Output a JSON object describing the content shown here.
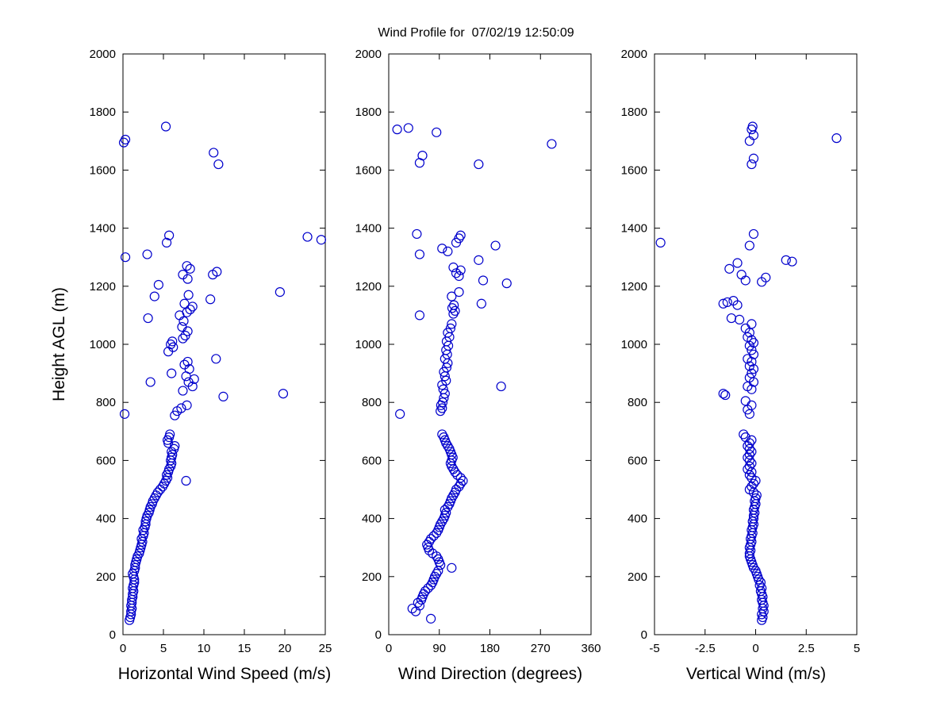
{
  "title": "Wind Profile for  07/02/19 12:50:09",
  "marker_color": "#0000cc",
  "axis_color": "#000000",
  "chart_data": [
    {
      "type": "scatter",
      "xlabel": "Horizontal Wind Speed (m/s)",
      "ylabel": "Height AGL (m)",
      "xlim": [
        0,
        25
      ],
      "ylim": [
        0,
        2000
      ],
      "xticks": [
        0,
        5,
        10,
        15,
        20,
        25
      ],
      "yticks": [
        0,
        200,
        400,
        600,
        800,
        1000,
        1200,
        1400,
        1600,
        1800,
        2000
      ],
      "legend": "none",
      "grid": false,
      "points": [
        [
          0.8,
          50
        ],
        [
          0.9,
          60
        ],
        [
          1.0,
          70
        ],
        [
          1.0,
          80
        ],
        [
          1.1,
          90
        ],
        [
          1.0,
          100
        ],
        [
          1.1,
          110
        ],
        [
          1.1,
          120
        ],
        [
          1.2,
          130
        ],
        [
          1.2,
          140
        ],
        [
          1.3,
          150
        ],
        [
          1.2,
          160
        ],
        [
          1.3,
          170
        ],
        [
          1.4,
          180
        ],
        [
          1.4,
          190
        ],
        [
          1.3,
          200
        ],
        [
          1.2,
          210
        ],
        [
          1.4,
          220
        ],
        [
          1.5,
          230
        ],
        [
          1.5,
          240
        ],
        [
          1.6,
          250
        ],
        [
          1.7,
          260
        ],
        [
          1.8,
          270
        ],
        [
          2.0,
          280
        ],
        [
          2.1,
          290
        ],
        [
          2.2,
          300
        ],
        [
          2.3,
          310
        ],
        [
          2.4,
          320
        ],
        [
          2.3,
          330
        ],
        [
          2.5,
          340
        ],
        [
          2.6,
          350
        ],
        [
          2.5,
          360
        ],
        [
          2.7,
          370
        ],
        [
          2.8,
          380
        ],
        [
          2.8,
          390
        ],
        [
          2.9,
          400
        ],
        [
          3.0,
          410
        ],
        [
          3.2,
          420
        ],
        [
          3.3,
          430
        ],
        [
          3.4,
          440
        ],
        [
          3.6,
          450
        ],
        [
          3.7,
          460
        ],
        [
          3.9,
          470
        ],
        [
          4.1,
          480
        ],
        [
          4.3,
          490
        ],
        [
          4.6,
          500
        ],
        [
          4.9,
          510
        ],
        [
          5.1,
          520
        ],
        [
          5.3,
          530
        ],
        [
          7.8,
          530
        ],
        [
          5.5,
          540
        ],
        [
          5.4,
          550
        ],
        [
          5.6,
          560
        ],
        [
          5.7,
          570
        ],
        [
          5.9,
          580
        ],
        [
          6.0,
          590
        ],
        [
          5.9,
          600
        ],
        [
          6.0,
          610
        ],
        [
          6.1,
          620
        ],
        [
          6.0,
          630
        ],
        [
          6.3,
          640
        ],
        [
          6.4,
          650
        ],
        [
          5.6,
          660
        ],
        [
          5.5,
          670
        ],
        [
          5.7,
          680
        ],
        [
          5.8,
          690
        ],
        [
          0.2,
          760
        ],
        [
          6.4,
          755
        ],
        [
          6.7,
          770
        ],
        [
          7.2,
          780
        ],
        [
          7.9,
          790
        ],
        [
          12.4,
          820
        ],
        [
          19.8,
          830
        ],
        [
          7.4,
          840
        ],
        [
          8.6,
          855
        ],
        [
          3.4,
          870
        ],
        [
          8.1,
          870
        ],
        [
          8.8,
          880
        ],
        [
          7.8,
          890
        ],
        [
          6.0,
          900
        ],
        [
          8.2,
          915
        ],
        [
          7.6,
          930
        ],
        [
          8.0,
          940
        ],
        [
          11.5,
          950
        ],
        [
          5.6,
          975
        ],
        [
          6.2,
          990
        ],
        [
          5.9,
          1000
        ],
        [
          6.1,
          1010
        ],
        [
          7.4,
          1020
        ],
        [
          7.7,
          1030
        ],
        [
          8.0,
          1045
        ],
        [
          7.3,
          1060
        ],
        [
          7.5,
          1080
        ],
        [
          3.1,
          1090
        ],
        [
          7.0,
          1100
        ],
        [
          7.9,
          1110
        ],
        [
          8.3,
          1120
        ],
        [
          8.6,
          1130
        ],
        [
          7.6,
          1140
        ],
        [
          10.8,
          1155
        ],
        [
          3.9,
          1165
        ],
        [
          8.1,
          1170
        ],
        [
          19.4,
          1180
        ],
        [
          4.4,
          1205
        ],
        [
          8.0,
          1225
        ],
        [
          7.4,
          1240
        ],
        [
          11.1,
          1240
        ],
        [
          11.6,
          1250
        ],
        [
          8.3,
          1260
        ],
        [
          7.9,
          1270
        ],
        [
          0.3,
          1300
        ],
        [
          3.0,
          1310
        ],
        [
          5.4,
          1350
        ],
        [
          5.7,
          1375
        ],
        [
          22.8,
          1370
        ],
        [
          24.5,
          1360
        ],
        [
          11.8,
          1620
        ],
        [
          11.2,
          1660
        ],
        [
          0.1,
          1695
        ],
        [
          0.3,
          1705
        ],
        [
          5.3,
          1750
        ]
      ]
    },
    {
      "type": "scatter",
      "xlabel": "Wind Direction (degrees)",
      "ylabel": "",
      "xlim": [
        0,
        360
      ],
      "ylim": [
        0,
        2000
      ],
      "xticks": [
        0,
        90,
        180,
        270,
        360
      ],
      "yticks": [
        0,
        200,
        400,
        600,
        800,
        1000,
        1200,
        1400,
        1600,
        1800,
        2000
      ],
      "legend": "none",
      "grid": false,
      "points": [
        [
          75,
          55
        ],
        [
          48,
          80
        ],
        [
          42,
          90
        ],
        [
          55,
          100
        ],
        [
          52,
          110
        ],
        [
          58,
          120
        ],
        [
          60,
          130
        ],
        [
          62,
          140
        ],
        [
          65,
          150
        ],
        [
          70,
          160
        ],
        [
          75,
          170
        ],
        [
          78,
          180
        ],
        [
          80,
          190
        ],
        [
          82,
          200
        ],
        [
          85,
          210
        ],
        [
          88,
          220
        ],
        [
          112,
          230
        ],
        [
          92,
          240
        ],
        [
          90,
          250
        ],
        [
          88,
          260
        ],
        [
          85,
          270
        ],
        [
          78,
          280
        ],
        [
          72,
          290
        ],
        [
          70,
          300
        ],
        [
          68,
          310
        ],
        [
          72,
          320
        ],
        [
          75,
          330
        ],
        [
          80,
          340
        ],
        [
          85,
          350
        ],
        [
          88,
          360
        ],
        [
          90,
          370
        ],
        [
          92,
          380
        ],
        [
          95,
          390
        ],
        [
          98,
          400
        ],
        [
          100,
          410
        ],
        [
          102,
          420
        ],
        [
          100,
          430
        ],
        [
          105,
          440
        ],
        [
          108,
          450
        ],
        [
          110,
          460
        ],
        [
          112,
          470
        ],
        [
          115,
          480
        ],
        [
          118,
          490
        ],
        [
          120,
          500
        ],
        [
          125,
          510
        ],
        [
          128,
          520
        ],
        [
          132,
          530
        ],
        [
          128,
          540
        ],
        [
          122,
          550
        ],
        [
          118,
          560
        ],
        [
          115,
          570
        ],
        [
          112,
          580
        ],
        [
          110,
          590
        ],
        [
          112,
          600
        ],
        [
          114,
          610
        ],
        [
          112,
          620
        ],
        [
          110,
          630
        ],
        [
          108,
          640
        ],
        [
          105,
          650
        ],
        [
          102,
          660
        ],
        [
          100,
          670
        ],
        [
          98,
          680
        ],
        [
          95,
          690
        ],
        [
          20,
          760
        ],
        [
          92,
          770
        ],
        [
          95,
          780
        ],
        [
          93,
          790
        ],
        [
          96,
          800
        ],
        [
          98,
          815
        ],
        [
          100,
          830
        ],
        [
          97,
          845
        ],
        [
          200,
          855
        ],
        [
          95,
          860
        ],
        [
          102,
          875
        ],
        [
          100,
          890
        ],
        [
          98,
          905
        ],
        [
          103,
          920
        ],
        [
          105,
          935
        ],
        [
          100,
          950
        ],
        [
          104,
          965
        ],
        [
          102,
          980
        ],
        [
          106,
          995
        ],
        [
          103,
          1010
        ],
        [
          108,
          1025
        ],
        [
          105,
          1040
        ],
        [
          110,
          1055
        ],
        [
          112,
          1070
        ],
        [
          55,
          1100
        ],
        [
          115,
          1105
        ],
        [
          118,
          1115
        ],
        [
          113,
          1125
        ],
        [
          116,
          1135
        ],
        [
          165,
          1140
        ],
        [
          112,
          1165
        ],
        [
          125,
          1180
        ],
        [
          168,
          1220
        ],
        [
          210,
          1210
        ],
        [
          125,
          1235
        ],
        [
          120,
          1245
        ],
        [
          128,
          1255
        ],
        [
          115,
          1265
        ],
        [
          160,
          1290
        ],
        [
          55,
          1310
        ],
        [
          105,
          1320
        ],
        [
          95,
          1330
        ],
        [
          190,
          1340
        ],
        [
          120,
          1350
        ],
        [
          125,
          1365
        ],
        [
          128,
          1375
        ],
        [
          50,
          1380
        ],
        [
          160,
          1620
        ],
        [
          55,
          1625
        ],
        [
          60,
          1650
        ],
        [
          85,
          1730
        ],
        [
          15,
          1740
        ],
        [
          35,
          1745
        ],
        [
          290,
          1690
        ]
      ]
    },
    {
      "type": "scatter",
      "xlabel": "Vertical Wind (m/s)",
      "ylabel": "",
      "xlim": [
        -5,
        5
      ],
      "ylim": [
        0,
        2000
      ],
      "xticks": [
        -5,
        -2.5,
        0,
        2.5,
        5
      ],
      "yticks": [
        0,
        200,
        400,
        600,
        800,
        1000,
        1200,
        1400,
        1600,
        1800,
        2000
      ],
      "legend": "none",
      "grid": false,
      "points": [
        [
          0.3,
          50
        ],
        [
          0.35,
          60
        ],
        [
          0.3,
          70
        ],
        [
          0.4,
          80
        ],
        [
          0.35,
          90
        ],
        [
          0.4,
          100
        ],
        [
          0.35,
          110
        ],
        [
          0.3,
          120
        ],
        [
          0.35,
          130
        ],
        [
          0.3,
          140
        ],
        [
          0.25,
          150
        ],
        [
          0.3,
          160
        ],
        [
          0.2,
          170
        ],
        [
          0.25,
          180
        ],
        [
          0.15,
          190
        ],
        [
          0.1,
          200
        ],
        [
          0.05,
          210
        ],
        [
          0,
          220
        ],
        [
          -0.1,
          230
        ],
        [
          -0.15,
          240
        ],
        [
          -0.2,
          250
        ],
        [
          -0.25,
          260
        ],
        [
          -0.3,
          270
        ],
        [
          -0.3,
          280
        ],
        [
          -0.25,
          290
        ],
        [
          -0.3,
          300
        ],
        [
          -0.25,
          310
        ],
        [
          -0.2,
          320
        ],
        [
          -0.25,
          330
        ],
        [
          -0.2,
          340
        ],
        [
          -0.15,
          350
        ],
        [
          -0.2,
          360
        ],
        [
          -0.15,
          370
        ],
        [
          -0.1,
          380
        ],
        [
          -0.15,
          390
        ],
        [
          -0.1,
          400
        ],
        [
          -0.1,
          410
        ],
        [
          -0.05,
          420
        ],
        [
          -0.1,
          430
        ],
        [
          -0.05,
          440
        ],
        [
          0,
          450
        ],
        [
          -0.05,
          460
        ],
        [
          0,
          470
        ],
        [
          0.05,
          480
        ],
        [
          -0.1,
          490
        ],
        [
          -0.3,
          500
        ],
        [
          -0.2,
          510
        ],
        [
          -0.1,
          520
        ],
        [
          0,
          530
        ],
        [
          -0.2,
          540
        ],
        [
          -0.3,
          550
        ],
        [
          -0.2,
          560
        ],
        [
          -0.4,
          570
        ],
        [
          -0.3,
          580
        ],
        [
          -0.2,
          590
        ],
        [
          -0.3,
          600
        ],
        [
          -0.4,
          610
        ],
        [
          -0.3,
          620
        ],
        [
          -0.2,
          630
        ],
        [
          -0.3,
          640
        ],
        [
          -0.4,
          650
        ],
        [
          -0.3,
          660
        ],
        [
          -0.2,
          670
        ],
        [
          -0.5,
          680
        ],
        [
          -0.6,
          690
        ],
        [
          -0.3,
          760
        ],
        [
          -0.4,
          775
        ],
        [
          -0.2,
          790
        ],
        [
          -0.5,
          805
        ],
        [
          -1.5,
          825
        ],
        [
          -1.6,
          830
        ],
        [
          -0.2,
          845
        ],
        [
          -0.4,
          855
        ],
        [
          -0.1,
          870
        ],
        [
          -0.3,
          885
        ],
        [
          -0.2,
          900
        ],
        [
          -0.1,
          915
        ],
        [
          -0.3,
          925
        ],
        [
          -0.2,
          940
        ],
        [
          -0.4,
          950
        ],
        [
          -0.1,
          965
        ],
        [
          -0.2,
          980
        ],
        [
          -0.3,
          995
        ],
        [
          -0.1,
          1005
        ],
        [
          -0.2,
          1015
        ],
        [
          -0.4,
          1025
        ],
        [
          -0.3,
          1040
        ],
        [
          -0.5,
          1055
        ],
        [
          -0.2,
          1070
        ],
        [
          -0.8,
          1085
        ],
        [
          -1.2,
          1090
        ],
        [
          -0.9,
          1135
        ],
        [
          -1.6,
          1140
        ],
        [
          -1.4,
          1145
        ],
        [
          -1.1,
          1150
        ],
        [
          0.3,
          1215
        ],
        [
          -0.5,
          1220
        ],
        [
          0.5,
          1230
        ],
        [
          -0.7,
          1240
        ],
        [
          -1.3,
          1260
        ],
        [
          -0.9,
          1280
        ],
        [
          1.8,
          1285
        ],
        [
          1.5,
          1290
        ],
        [
          -0.3,
          1340
        ],
        [
          -4.7,
          1350
        ],
        [
          -0.1,
          1380
        ],
        [
          -0.2,
          1620
        ],
        [
          -0.1,
          1640
        ],
        [
          -0.3,
          1700
        ],
        [
          4.0,
          1710
        ],
        [
          -0.1,
          1720
        ],
        [
          -0.2,
          1740
        ],
        [
          -0.15,
          1750
        ]
      ]
    }
  ]
}
